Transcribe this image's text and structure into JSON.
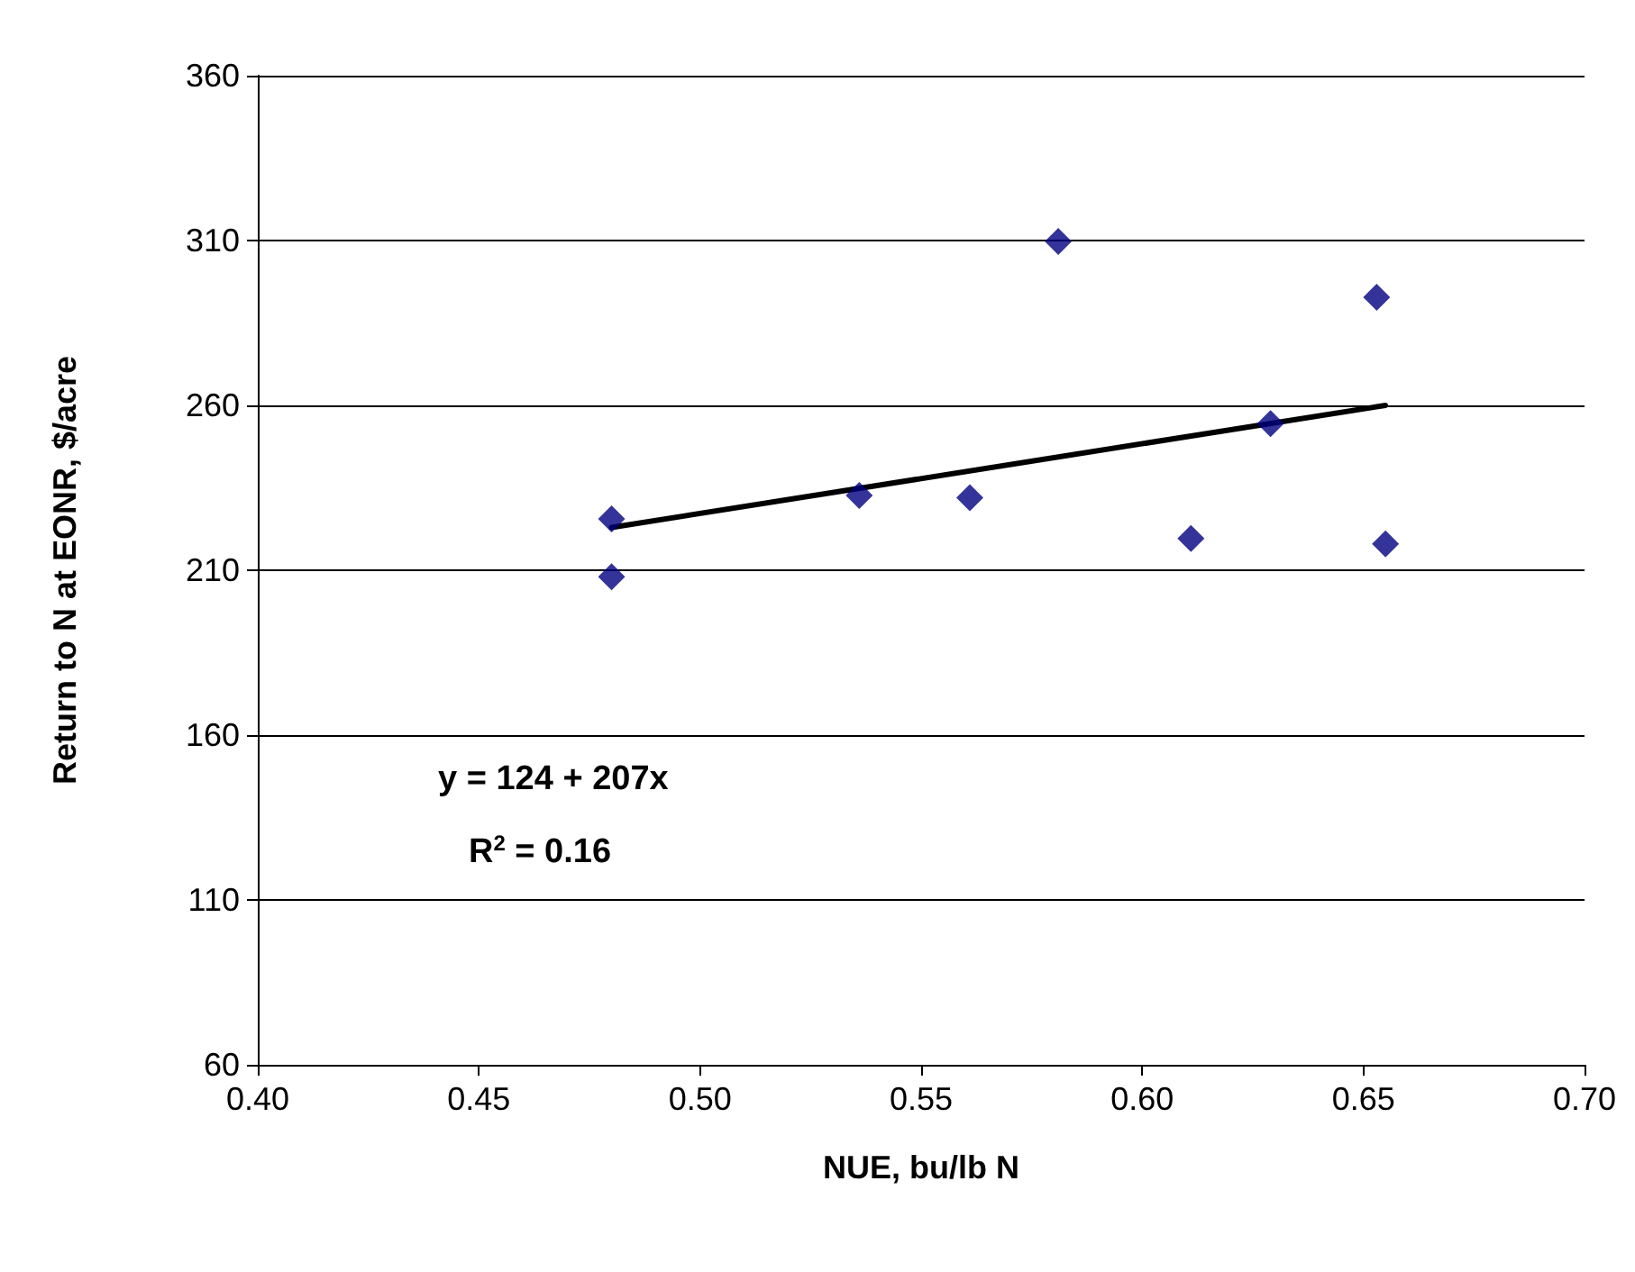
{
  "chart_data": {
    "type": "scatter",
    "xlabel": "NUE, bu/lb N",
    "ylabel": "Return to N at EONR, $/acre",
    "xlim": [
      0.4,
      0.7
    ],
    "xticks": [
      {
        "value": 0.4,
        "label": "0.40"
      },
      {
        "value": 0.45,
        "label": "0.45"
      },
      {
        "value": 0.5,
        "label": "0.50"
      },
      {
        "value": 0.55,
        "label": "0.55"
      },
      {
        "value": 0.6,
        "label": "0.60"
      },
      {
        "value": 0.65,
        "label": "0.65"
      },
      {
        "value": 0.7,
        "label": "0.70"
      }
    ],
    "ylim": [
      60,
      360
    ],
    "yticks": [
      60,
      110,
      160,
      210,
      260,
      310,
      360
    ],
    "grid": "y",
    "marker": "diamond",
    "annotations": [
      "y = 124 + 207x",
      "R$^{2}$ = 0.16"
    ],
    "series": [
      {
        "type": "scatter",
        "color": "#000080",
        "x": [
          0.48,
          0.48,
          0.536,
          0.561,
          0.581,
          0.611,
          0.629,
          0.653,
          0.655
        ],
        "values": [
          225.6,
          208,
          232.7,
          232,
          309.7,
          219.6,
          254.5,
          292.8,
          218
        ]
      },
      {
        "type": "line",
        "color": "#000000",
        "marker": "none",
        "x": [
          0.48,
          0.655
        ],
        "values": [
          223,
          260
        ]
      }
    ]
  }
}
